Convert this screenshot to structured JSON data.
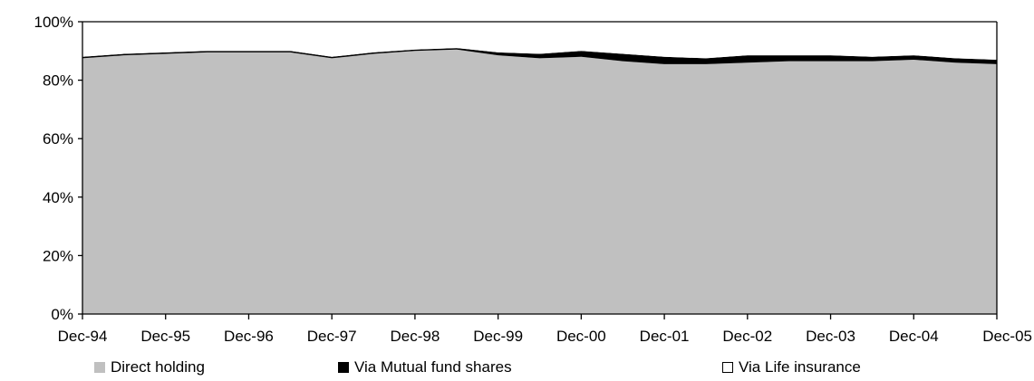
{
  "chart_data": {
    "type": "area",
    "stacked": true,
    "title": "",
    "xlabel": "",
    "ylabel": "",
    "ylim": [
      0,
      100
    ],
    "y_ticks": [
      "0%",
      "20%",
      "40%",
      "60%",
      "80%",
      "100%"
    ],
    "x_ticks": [
      "Dec-94",
      "Dec-95",
      "Dec-96",
      "Dec-97",
      "Dec-98",
      "Dec-99",
      "Dec-00",
      "Dec-01",
      "Dec-02",
      "Dec-03",
      "Dec-04",
      "Dec-05"
    ],
    "x": [
      "Dec-94",
      "Jun-95",
      "Dec-95",
      "Jun-96",
      "Dec-96",
      "Jun-97",
      "Dec-97",
      "Jun-98",
      "Dec-98",
      "Jun-99",
      "Dec-99",
      "Jun-00",
      "Dec-00",
      "Jun-01",
      "Dec-01",
      "Jun-02",
      "Dec-02",
      "Jun-03",
      "Dec-03",
      "Jun-04",
      "Dec-04",
      "Jun-05",
      "Dec-05"
    ],
    "series": [
      {
        "name": "Direct holding",
        "color": "#c0c0c0",
        "values": [
          87.5,
          88.5,
          89,
          89.5,
          89.5,
          89.5,
          87.5,
          89,
          90,
          90.5,
          88.5,
          87.5,
          88,
          86.5,
          85.5,
          85.5,
          86,
          86.5,
          86.5,
          86.5,
          87,
          86,
          85.5
        ]
      },
      {
        "name": "Via Mutual fund shares",
        "color": "#000000",
        "values": [
          0.5,
          0.5,
          0.5,
          0.5,
          0.5,
          0.5,
          0.5,
          0.5,
          0.5,
          0.5,
          1,
          1.5,
          2,
          2.5,
          2.5,
          2,
          2.5,
          2,
          2,
          1.5,
          1.5,
          1.5,
          1.5
        ]
      },
      {
        "name": "Via Life insurance",
        "color": "#ffffff",
        "values": [
          12,
          11,
          10.5,
          10,
          10,
          10,
          12,
          10.5,
          9.5,
          9,
          10.5,
          11,
          10,
          11,
          12,
          12.5,
          11.5,
          11.5,
          11.5,
          12,
          11.5,
          12.5,
          13
        ]
      }
    ],
    "legend_position": "bottom",
    "grid": false
  }
}
